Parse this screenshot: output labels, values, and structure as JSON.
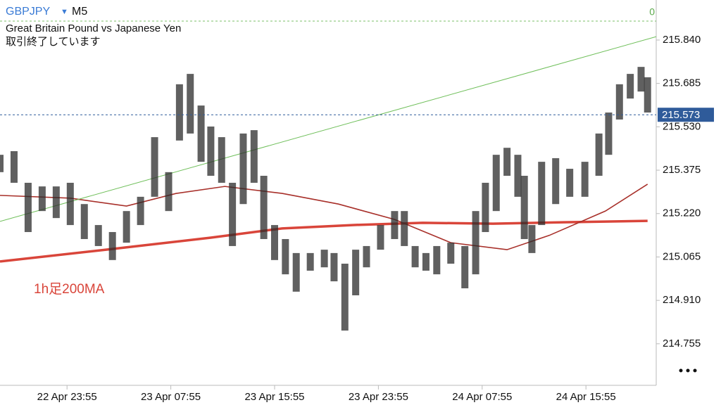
{
  "header": {
    "symbol": "GBPJPY",
    "timeframe": "M5",
    "description": "Great Britain Pound vs Japanese Yen",
    "status": "取引終了しています",
    "top_label": "0"
  },
  "chart_data": {
    "type": "ohlc",
    "x": [
      -62,
      -49,
      -36,
      -23,
      -10,
      3,
      16,
      29,
      42,
      55,
      68,
      81,
      94,
      104,
      114,
      124,
      133,
      143,
      153,
      163,
      173,
      182,
      192,
      202,
      212,
      225,
      238,
      247,
      257,
      267,
      277,
      290,
      303,
      312,
      322,
      332,
      342,
      355,
      368,
      378,
      387,
      397,
      407,
      417,
      423,
      430,
      439,
      452,
      465,
      479,
      492,
      501,
      511,
      521,
      531,
      537
    ],
    "high": [
      215.43,
      215.443,
      215.33,
      215.317,
      215.317,
      215.33,
      215.254,
      215.179,
      215.154,
      215.229,
      215.28,
      215.493,
      215.368,
      215.682,
      215.719,
      215.606,
      215.531,
      215.493,
      215.33,
      215.506,
      215.518,
      215.355,
      215.179,
      215.129,
      215.079,
      215.079,
      215.091,
      215.079,
      215.041,
      215.091,
      215.104,
      215.179,
      215.229,
      215.229,
      215.104,
      215.079,
      215.104,
      215.116,
      215.104,
      215.229,
      215.33,
      215.43,
      215.455,
      215.43,
      215.355,
      215.179,
      215.405,
      215.418,
      215.38,
      215.405,
      215.506,
      215.581,
      215.682,
      215.719,
      215.744,
      215.707
    ],
    "low": [
      215.368,
      215.33,
      215.154,
      215.229,
      215.204,
      215.179,
      215.129,
      215.104,
      215.054,
      215.116,
      215.179,
      215.28,
      215.229,
      215.481,
      215.506,
      215.405,
      215.355,
      215.33,
      215.104,
      215.254,
      215.33,
      215.129,
      215.054,
      215.003,
      214.941,
      215.016,
      215.028,
      214.978,
      214.802,
      214.928,
      215.028,
      215.091,
      215.129,
      215.104,
      215.028,
      215.016,
      215.003,
      215.041,
      214.953,
      215.003,
      215.154,
      215.229,
      215.355,
      215.28,
      215.129,
      215.079,
      215.179,
      215.254,
      215.28,
      215.28,
      215.355,
      215.43,
      215.556,
      215.631,
      215.656,
      215.581
    ],
    "color": "#2b2b2b",
    "lines": [
      {
        "color": "#d9453a",
        "x": [
          -62,
          36,
          133,
          199,
          264,
          329,
          394,
          459,
          537
        ],
        "values": [
          215.049,
          215.091,
          215.134,
          215.167,
          215.179,
          215.187,
          215.184,
          215.189,
          215.194
        ]
      },
      {
        "color": "#a8302a",
        "x": [
          -62,
          3,
          55,
          101,
          146,
          199,
          251,
          303,
          355,
          407,
          446,
          498,
          537
        ],
        "values": [
          215.285,
          215.275,
          215.247,
          215.292,
          215.317,
          215.292,
          215.254,
          215.199,
          215.116,
          215.091,
          215.142,
          215.229,
          215.325
        ]
      },
      {
        "color": "#6fbf5a",
        "x": [
          -62,
          545
        ],
        "values": [
          215.192,
          215.852
        ]
      }
    ],
    "annotation": "1h足200MA",
    "last_price": 215.573,
    "xlim": [
      -62,
      545
    ],
    "xticks": [
      {
        "value": 0,
        "label": "22 Apr 23:55"
      },
      {
        "value": 96,
        "label": "23 Apr 07:55"
      },
      {
        "value": 192,
        "label": "23 Apr 15:55"
      },
      {
        "value": 288,
        "label": "23 Apr 23:55"
      },
      {
        "value": 384,
        "label": "24 Apr 07:55"
      },
      {
        "value": 480,
        "label": "24 Apr 15:55"
      }
    ],
    "ylim": [
      214.614,
      215.983
    ],
    "yticks": [
      214.755,
      {
        "value": 214.91,
        "label": "214.910"
      },
      215.065,
      {
        "value": 215.22,
        "label": "215.220"
      },
      215.375,
      {
        "value": 215.53,
        "label": "215.530"
      },
      215.685,
      {
        "value": 215.84,
        "label": "215.840"
      }
    ]
  }
}
